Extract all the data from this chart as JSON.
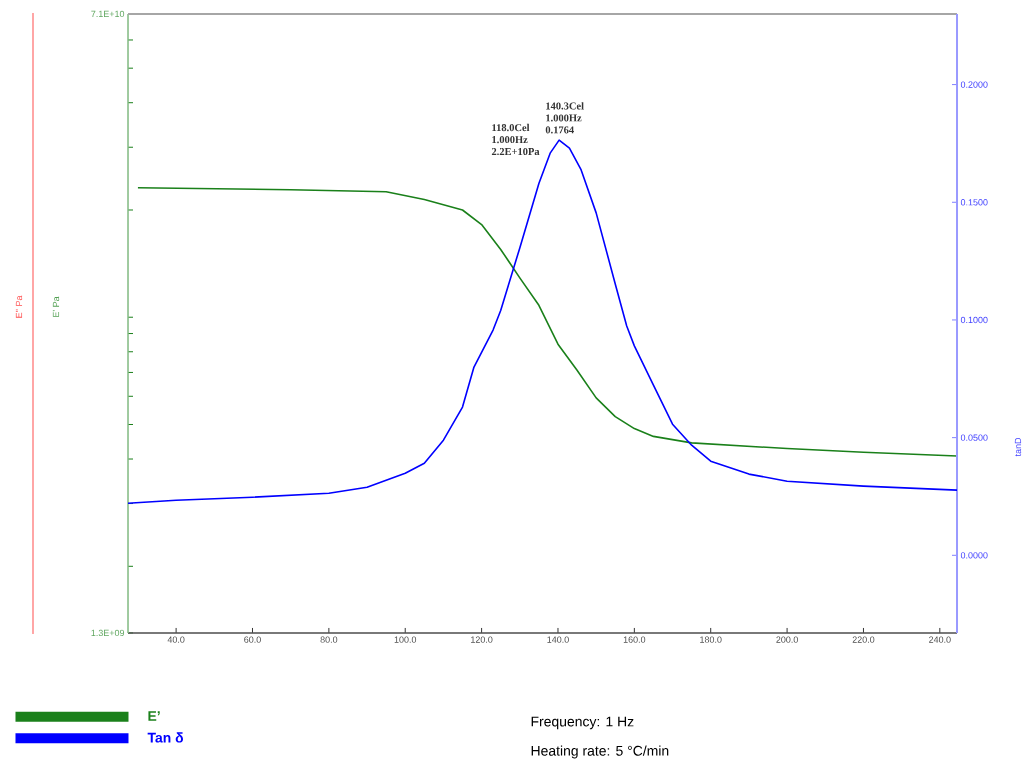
{
  "chart_data": {
    "type": "line",
    "ylabel": "E' Pa",
    "y2label": "tanD",
    "xlim": [
      27.4,
      244.5
    ],
    "xticks": [
      {
        "value": 40,
        "label": "40.0"
      },
      {
        "value": 60,
        "label": "60.0"
      },
      {
        "value": 80,
        "label": "80.0"
      },
      {
        "value": 100,
        "label": "100.0"
      },
      {
        "value": 120,
        "label": "120.0"
      },
      {
        "value": 140,
        "label": "140.0"
      },
      {
        "value": 160,
        "label": "160.0"
      },
      {
        "value": 180,
        "label": "180.0"
      },
      {
        "value": 200,
        "label": "200.0"
      },
      {
        "value": 220,
        "label": "220.0"
      },
      {
        "value": 240,
        "label": "240.0"
      }
    ],
    "ylim": [
      1300000000.0,
      71000000000.0
    ],
    "yticks": [
      {
        "value": 1300000000.0,
        "label": "1.3E+09"
      },
      {
        "value": 2000000000.0,
        "label": null
      },
      {
        "value": 3000000000.0,
        "label": null
      },
      {
        "value": 4000000000.0,
        "label": null
      },
      {
        "value": 5000000000.0,
        "label": null
      },
      {
        "value": 6000000000.0,
        "label": null
      },
      {
        "value": 7000000000.0,
        "label": null
      },
      {
        "value": 8000000000.0,
        "label": null
      },
      {
        "value": 9000000000.0,
        "label": null
      },
      {
        "value": 10000000000.0,
        "label": null
      },
      {
        "value": 20000000000.0,
        "label": null
      },
      {
        "value": 30000000000.0,
        "label": null
      },
      {
        "value": 40000000000.0,
        "label": null
      },
      {
        "value": 50000000000.0,
        "label": null
      },
      {
        "value": 60000000000.0,
        "label": null
      },
      {
        "value": 71000000000.0,
        "label": "7.1E+10"
      }
    ],
    "y2lim": [
      -0.033,
      0.23
    ],
    "y2ticks": [
      {
        "value": 0,
        "label": "0.0000"
      },
      {
        "value": 0.05,
        "label": "0.0500"
      },
      {
        "value": 0.1,
        "label": "0.1000"
      },
      {
        "value": 0.15,
        "label": "0.1500"
      },
      {
        "value": 0.2,
        "label": "0.2000"
      }
    ],
    "log": "y",
    "marker": "none",
    "line_style": "solid",
    "legend": "bottom left",
    "series": [
      {
        "name": "E’",
        "color": "#1a801a",
        "axis": "y",
        "x": [
          30,
          70,
          95,
          105,
          115,
          120,
          125,
          130,
          135,
          140,
          145,
          150,
          155,
          160,
          165,
          175,
          200,
          220,
          244.5
        ],
        "values": [
          23100000000.0,
          22800000000.0,
          22500000000.0,
          21400000000.0,
          20000000000.0,
          18200000000.0,
          15500000000.0,
          12900000000.0,
          10800000000.0,
          8400000000.0,
          7100000000.0,
          5940000000.0,
          5260000000.0,
          4870000000.0,
          4630000000.0,
          4440000000.0,
          4280000000.0,
          4180000000.0,
          4080000000.0
        ]
      },
      {
        "name": "Tan δ",
        "color": "#0000ff",
        "axis": "y2",
        "x": [
          27.4,
          40,
          60,
          80,
          90,
          100,
          105,
          110,
          115,
          118,
          123,
          125,
          130,
          135,
          138,
          140.3,
          143,
          146,
          150,
          155,
          158,
          160,
          165,
          170,
          175,
          180,
          190,
          200,
          220,
          244.5
        ],
        "values": [
          0.0221,
          0.0234,
          0.0247,
          0.0264,
          0.0289,
          0.0349,
          0.0391,
          0.0489,
          0.063,
          0.08,
          0.0957,
          0.104,
          0.1306,
          0.158,
          0.171,
          0.1764,
          0.173,
          0.164,
          0.1455,
          0.1153,
          0.0974,
          0.089,
          0.0723,
          0.0557,
          0.0468,
          0.04,
          0.0345,
          0.0315,
          0.0294,
          0.0277
        ]
      }
    ],
    "annotations": [
      "118.0Cel 1.000Hz 2.2E+10Pa",
      "140.3Cel 1.000Hz 0.1764",
      "E'' Pa",
      "Frequency: 1 Hz",
      "Heating rate: 5 °C/min"
    ]
  }
}
